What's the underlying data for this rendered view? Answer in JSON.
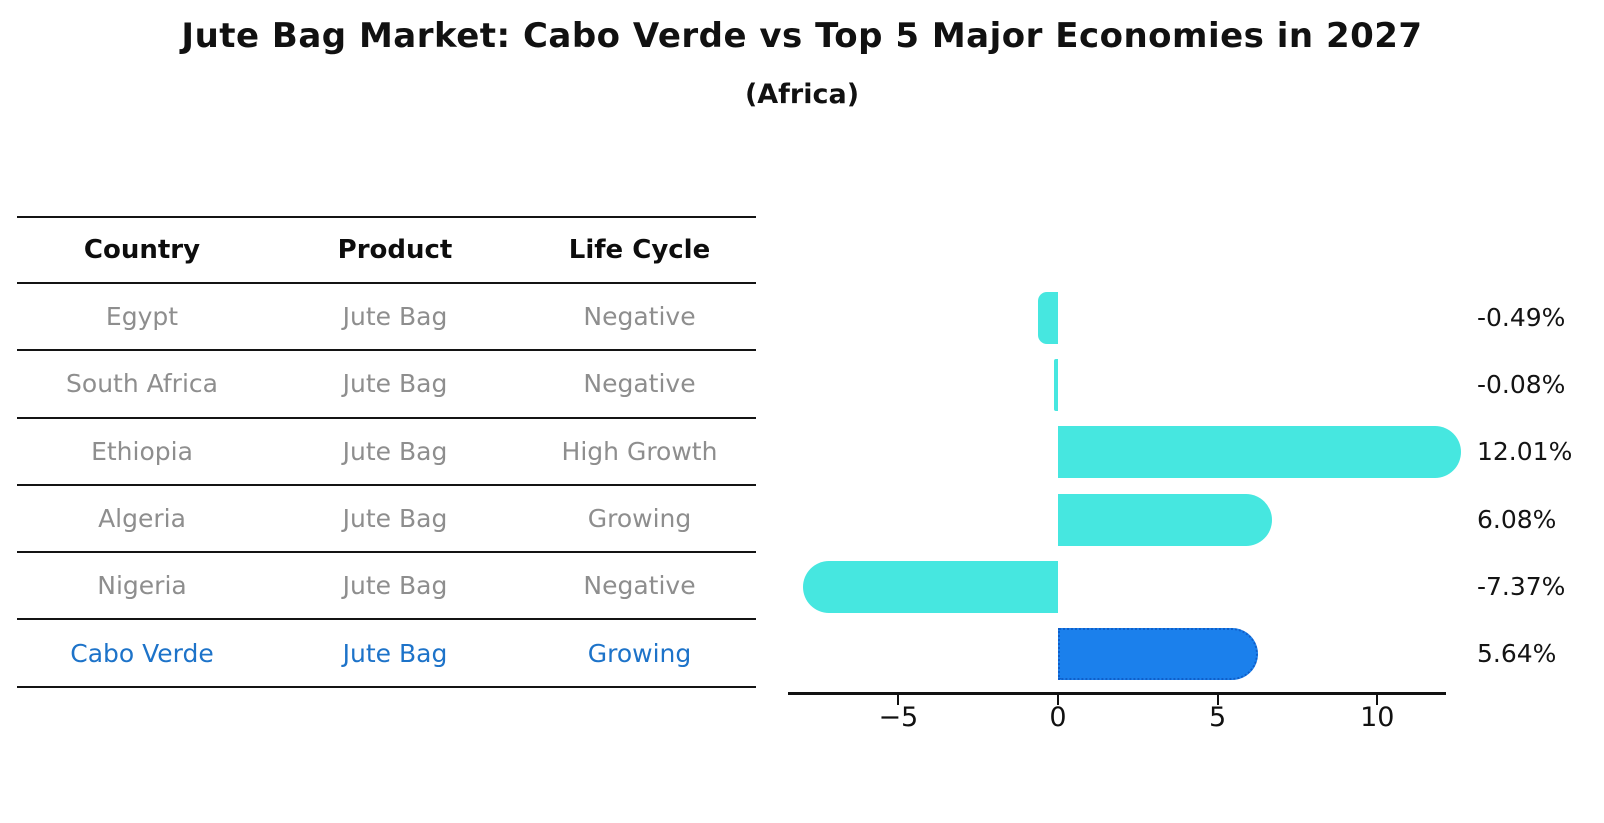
{
  "title": "Jute Bag Market: Cabo Verde vs Top 5 Major Economies in 2027",
  "subtitle": "(Africa)",
  "table": {
    "headers": [
      "Country",
      "Product",
      "Life Cycle"
    ],
    "rows": [
      {
        "country": "Egypt",
        "product": "Jute Bag",
        "life_cycle": "Negative",
        "highlight": false
      },
      {
        "country": "South Africa",
        "product": "Jute Bag",
        "life_cycle": "Negative",
        "highlight": false
      },
      {
        "country": "Ethiopia",
        "product": "Jute Bag",
        "life_cycle": "High Growth",
        "highlight": false
      },
      {
        "country": "Algeria",
        "product": "Jute Bag",
        "life_cycle": "Growing",
        "highlight": false
      },
      {
        "country": "Nigeria",
        "product": "Jute Bag",
        "life_cycle": "Negative",
        "highlight": true
      }
    ],
    "highlight_row": {
      "country": "Cabo Verde",
      "product": "Jute Bag",
      "life_cycle": "Growing"
    }
  },
  "chart_data": {
    "type": "bar",
    "orientation": "horizontal",
    "title": "Jute Bag Market: Cabo Verde vs Top 5 Major Economies in 2027",
    "subtitle": "(Africa)",
    "categories": [
      "Egypt",
      "South Africa",
      "Ethiopia",
      "Algeria",
      "Nigeria",
      "Cabo Verde"
    ],
    "values": [
      -0.49,
      -0.08,
      12.01,
      6.08,
      -7.37,
      5.64
    ],
    "value_labels": [
      "-0.49%",
      "-0.08%",
      "12.01%",
      "6.08%",
      "-7.37%",
      "5.64%"
    ],
    "highlight_index": 5,
    "x_ticks": [
      -5,
      0,
      5,
      10
    ],
    "x_tick_labels": [
      "−5",
      "0",
      "5",
      "10"
    ],
    "xlim": [
      -8.4,
      12.2
    ],
    "grid": false,
    "legend": false,
    "unit": "%"
  },
  "colors": {
    "bar_default": "#46e7e0",
    "bar_highlight": "#1b80ec",
    "bar_highlight_border": "#0f5ec9",
    "highlight_text": "#1d73c9",
    "muted_text": "#8e8e8e",
    "text": "#111111",
    "background": "#ffffff"
  }
}
